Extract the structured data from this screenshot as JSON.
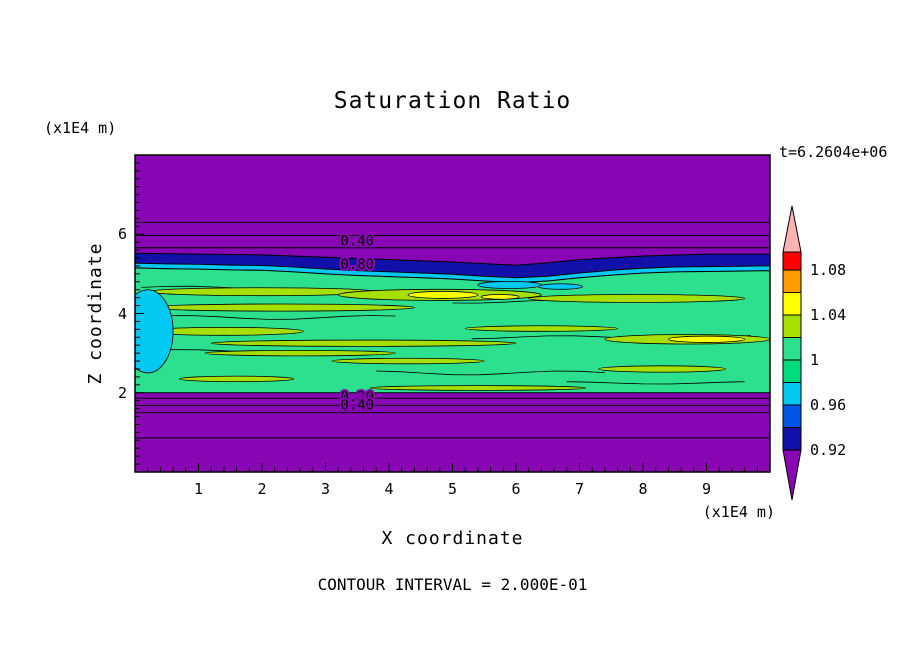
{
  "chart_data": {
    "type": "contour",
    "title": "Saturation Ratio",
    "xlabel": "X coordinate",
    "ylabel": "Z coordinate",
    "x_unit_label": "(x1E4 m)",
    "y_unit_label": "(x1E4 m)",
    "time_label": "t=6.2604e+06",
    "footer_label": "CONTOUR INTERVAL = 2.000E-01",
    "contour_interval": 0.2,
    "x_range": [
      0,
      10
    ],
    "z_range": [
      0,
      8
    ],
    "x_ticks": [
      "1",
      "2",
      "3",
      "4",
      "5",
      "6",
      "7",
      "8",
      "9"
    ],
    "x_tick_values": [
      1,
      2,
      3,
      4,
      5,
      6,
      7,
      8,
      9
    ],
    "y_ticks": [
      "2",
      "4",
      "6"
    ],
    "y_tick_values": [
      2,
      4,
      6
    ],
    "minor_tick_step": 0.2,
    "colorbar": {
      "labels": [
        "1.08",
        "1.04",
        "1",
        "0.96",
        "0.92"
      ],
      "label_values": [
        1.08,
        1.04,
        1.0,
        0.96,
        0.92
      ],
      "cells": [
        {
          "color": "#ffb3b3",
          "shape": "triangle-up",
          "range": ">1.10"
        },
        {
          "color": "#ff0000",
          "range": "1.08-1.10"
        },
        {
          "color": "#ff9d00",
          "range": "1.06-1.08"
        },
        {
          "color": "#ffff00",
          "range": "1.04-1.06"
        },
        {
          "color": "#a6e000",
          "range": "1.02-1.04"
        },
        {
          "color": "#2ce08e",
          "range": "1.00-1.02"
        },
        {
          "color": "#00dc7d",
          "range": "0.98-1.00"
        },
        {
          "color": "#00c8f0",
          "range": "0.96-0.98"
        },
        {
          "color": "#0055e8",
          "range": "0.94-0.96"
        },
        {
          "color": "#1111aa",
          "range": "0.92-0.94"
        },
        {
          "color": "#8806b4",
          "shape": "triangle-down",
          "range": "<0.92"
        }
      ]
    },
    "field_colors": {
      "background_purple": "#8806b4",
      "dark_blue_band": "#1111aa",
      "cyan": "#00c8f0",
      "green": "#2ce08e",
      "yellow_green": "#a6e000",
      "yellow": "#ffff00",
      "contour_line": "#000000"
    },
    "contour_labels": [
      {
        "text": "0.40",
        "x": 3.5,
        "z": 5.84
      },
      {
        "text": "0.80",
        "x": 3.5,
        "z": 5.25
      },
      {
        "text": "0.20",
        "x": 3.5,
        "z": 1.9
      },
      {
        "text": "0.40",
        "x": 3.5,
        "z": 1.7
      }
    ],
    "purple_contour_lines_z": [
      6.3,
      5.97,
      5.66,
      1.86,
      1.68,
      1.5,
      0.86
    ],
    "features": {
      "green_band_bottom_z": 2.0,
      "green_top_edge": [
        [
          0,
          5.15
        ],
        [
          0.5,
          5.13
        ],
        [
          1,
          5.12
        ],
        [
          1.5,
          5.1
        ],
        [
          2,
          5.09
        ],
        [
          2.5,
          5.05
        ],
        [
          3,
          5.0
        ],
        [
          3.5,
          4.96
        ],
        [
          4,
          4.93
        ],
        [
          4.5,
          4.9
        ],
        [
          5,
          4.87
        ],
        [
          5.5,
          4.82
        ],
        [
          6,
          4.78
        ],
        [
          6.5,
          4.82
        ],
        [
          7,
          4.9
        ],
        [
          7.5,
          4.97
        ],
        [
          8,
          5.02
        ],
        [
          8.5,
          5.05
        ],
        [
          9,
          5.06
        ],
        [
          9.5,
          5.07
        ],
        [
          10,
          5.08
        ]
      ],
      "blue_top_edge": [
        [
          0,
          5.52
        ],
        [
          1,
          5.5
        ],
        [
          2,
          5.48
        ],
        [
          3,
          5.42
        ],
        [
          4,
          5.36
        ],
        [
          5,
          5.3
        ],
        [
          5.5,
          5.26
        ],
        [
          6,
          5.22
        ],
        [
          6.5,
          5.28
        ],
        [
          7,
          5.36
        ],
        [
          8,
          5.45
        ],
        [
          9,
          5.5
        ],
        [
          10,
          5.5
        ]
      ],
      "cyan_strip_thickness": 0.12,
      "yellow_green_streaks": [
        {
          "x": 2.0,
          "z": 4.55,
          "rx": 1.8,
          "rz": 0.1
        },
        {
          "x": 2.3,
          "z": 4.15,
          "rx": 2.1,
          "rz": 0.09
        },
        {
          "x": 1.4,
          "z": 3.55,
          "rx": 1.25,
          "rz": 0.1
        },
        {
          "x": 3.6,
          "z": 3.25,
          "rx": 2.4,
          "rz": 0.08
        },
        {
          "x": 4.8,
          "z": 4.47,
          "rx": 1.6,
          "rz": 0.14
        },
        {
          "x": 7.9,
          "z": 4.38,
          "rx": 1.7,
          "rz": 0.1
        },
        {
          "x": 8.7,
          "z": 3.35,
          "rx": 1.3,
          "rz": 0.12
        },
        {
          "x": 8.3,
          "z": 2.6,
          "rx": 1.0,
          "rz": 0.08
        },
        {
          "x": 1.6,
          "z": 2.35,
          "rx": 0.9,
          "rz": 0.07
        },
        {
          "x": 5.4,
          "z": 2.12,
          "rx": 1.7,
          "rz": 0.06
        },
        {
          "x": 4.3,
          "z": 2.8,
          "rx": 1.2,
          "rz": 0.07
        },
        {
          "x": 6.4,
          "z": 3.62,
          "rx": 1.2,
          "rz": 0.07
        },
        {
          "x": 2.6,
          "z": 3.0,
          "rx": 1.5,
          "rz": 0.07
        }
      ],
      "yellow_spots": [
        {
          "x": 4.85,
          "z": 4.47,
          "rx": 0.55,
          "rz": 0.09
        },
        {
          "x": 5.75,
          "z": 4.42,
          "rx": 0.3,
          "rz": 0.06
        },
        {
          "x": 9.0,
          "z": 3.35,
          "rx": 0.6,
          "rz": 0.08
        }
      ],
      "cyan_patches": [
        {
          "x": 0.2,
          "z": 3.55,
          "rx": 0.4,
          "rz": 1.05
        },
        {
          "x": 5.9,
          "z": 4.72,
          "rx": 0.5,
          "rz": 0.09
        },
        {
          "x": 6.7,
          "z": 4.68,
          "rx": 0.35,
          "rz": 0.07
        }
      ],
      "inner_contour_squiggles": [
        {
          "z": 3.9,
          "x1": 0.1,
          "x2": 4.3,
          "amp": 0.05
        },
        {
          "z": 3.05,
          "x1": 0.2,
          "x2": 2.2,
          "amp": 0.04
        },
        {
          "z": 2.5,
          "x1": 3.8,
          "x2": 7.6,
          "amp": 0.05
        },
        {
          "z": 3.4,
          "x1": 5.3,
          "x2": 9.9,
          "amp": 0.04
        },
        {
          "z": 4.65,
          "x1": 0.1,
          "x2": 2.8,
          "amp": 0.04
        },
        {
          "z": 2.25,
          "x1": 6.8,
          "x2": 9.9,
          "amp": 0.03
        },
        {
          "z": 4.3,
          "x1": 5.0,
          "x2": 7.0,
          "amp": 0.04
        }
      ]
    }
  }
}
